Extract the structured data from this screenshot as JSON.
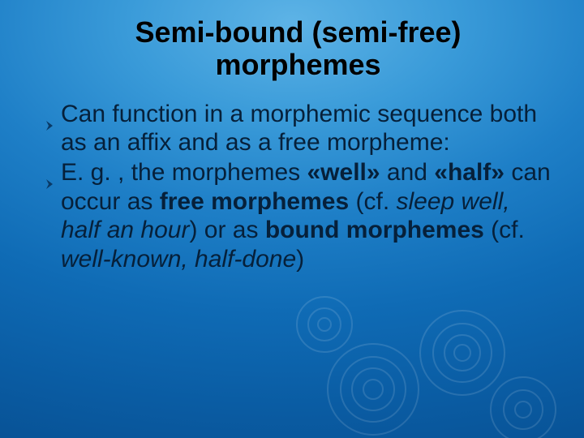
{
  "slide": {
    "background_gradient": [
      "#5db3e6",
      "#3a9bd9",
      "#1e7fc7",
      "#0f6bb5",
      "#0a5ca3",
      "#074e90"
    ],
    "title": {
      "line1": "Semi-bound (semi-free)",
      "line2": "morphemes",
      "fontsize": 36,
      "color": "#000000"
    },
    "body_fontsize": 30,
    "body_color": "#06203a",
    "bullet_icon_color": "#0a3a66",
    "bullets": [
      {
        "runs": [
          {
            "t": "Can function in a morphemic sequence both as an affix and as a free morpheme:",
            "b": false,
            "i": false
          }
        ]
      },
      {
        "runs": [
          {
            "t": "E. g. , the morphemes ",
            "b": false,
            "i": false
          },
          {
            "t": "«well»",
            "b": true,
            "i": false
          },
          {
            "t": " and ",
            "b": false,
            "i": false
          },
          {
            "t": "«half»",
            "b": true,
            "i": false
          },
          {
            "t": " can occur as ",
            "b": false,
            "i": false
          },
          {
            "t": "free morphemes",
            "b": true,
            "i": false
          },
          {
            "t": " (cf. ",
            "b": false,
            "i": false
          },
          {
            "t": "sleep well, half an hour",
            "b": false,
            "i": true
          },
          {
            "t": ") or as ",
            "b": false,
            "i": false
          },
          {
            "t": "bound morphemes",
            "b": true,
            "i": false
          },
          {
            "t": " (cf. ",
            "b": false,
            "i": false
          },
          {
            "t": "well-known, half-done",
            "b": false,
            "i": true
          },
          {
            "t": ")",
            "b": false,
            "i": false
          }
        ]
      }
    ]
  }
}
